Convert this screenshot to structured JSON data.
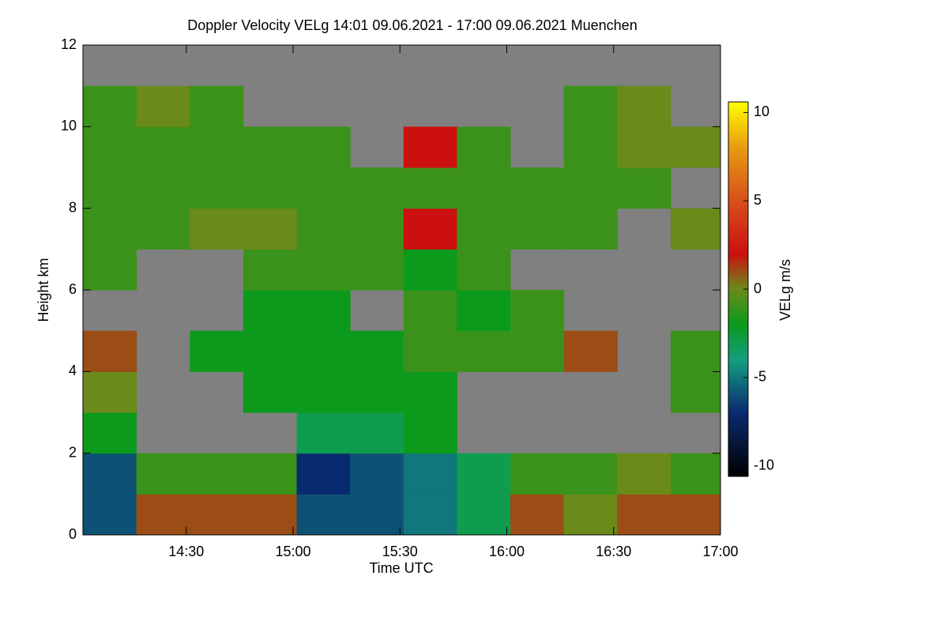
{
  "chart_data": {
    "type": "heatmap",
    "title": "Doppler Velocity VELg   14:01 09.06.2021 - 17:00 09.06.2021 Muenchen",
    "x_label": "Time UTC",
    "y_label": "Height km",
    "colorbar_label": "VELg m/s",
    "xlim": [
      841,
      1020
    ],
    "xticks": [
      {
        "value": 870,
        "label": "14:30"
      },
      {
        "value": 900,
        "label": "15:00"
      },
      {
        "value": 930,
        "label": "15:30"
      },
      {
        "value": 960,
        "label": "16:00"
      },
      {
        "value": 990,
        "label": "16:30"
      },
      {
        "value": 1020,
        "label": "17:00"
      }
    ],
    "ylim": [
      0,
      12
    ],
    "yticks": [
      0,
      2,
      4,
      6,
      8,
      10,
      12
    ],
    "x_edges": [
      841,
      856,
      871,
      886,
      901,
      916,
      931,
      946,
      961,
      976,
      991,
      1006,
      1020
    ],
    "y_edges": [
      0,
      1,
      2,
      3,
      4,
      5,
      6,
      7,
      8,
      9,
      10,
      11,
      12
    ],
    "z": [
      [
        -6,
        1,
        1,
        1,
        -6,
        -6,
        -5,
        -3,
        1,
        0,
        1,
        1
      ],
      [
        -6,
        -1,
        -1,
        -1,
        -7,
        -6,
        -5,
        -3,
        -1,
        -1,
        0,
        -1
      ],
      [
        -2,
        null,
        null,
        null,
        -3,
        -3,
        -2,
        null,
        null,
        null,
        null,
        null
      ],
      [
        0,
        null,
        null,
        -2,
        -2,
        -2,
        -2,
        null,
        null,
        null,
        null,
        -1
      ],
      [
        1,
        null,
        -2,
        -2,
        -2,
        -2,
        -1,
        -1,
        -1,
        1,
        null,
        -1
      ],
      [
        null,
        null,
        null,
        -2,
        -2,
        null,
        -1,
        -2,
        -1,
        null,
        null,
        null
      ],
      [
        -1,
        null,
        null,
        -1,
        -1,
        -1,
        -2,
        -1,
        null,
        null,
        null,
        null
      ],
      [
        -1,
        -1,
        0,
        0,
        -1,
        -1,
        2,
        -1,
        -1,
        -1,
        null,
        0
      ],
      [
        -1,
        -1,
        -1,
        -1,
        -1,
        -1,
        -1,
        -1,
        -1,
        -1,
        -1,
        null
      ],
      [
        -1,
        -1,
        -1,
        -1,
        -1,
        null,
        2,
        -1,
        null,
        -1,
        0,
        0
      ],
      [
        -1,
        0,
        -1,
        null,
        null,
        null,
        null,
        null,
        null,
        -1,
        0,
        null
      ],
      [
        null,
        null,
        null,
        null,
        null,
        null,
        null,
        null,
        null,
        null,
        null,
        null
      ]
    ],
    "missing_color": "#808080",
    "clim": [
      -10.6,
      10.6
    ],
    "cticks": [
      -10,
      -5,
      0,
      5,
      10
    ],
    "colorscale": [
      [
        -10.6,
        "#000000"
      ],
      [
        -7,
        "#0a2a70"
      ],
      [
        -4,
        "#139e80"
      ],
      [
        -2,
        "#0c9a1c"
      ],
      [
        0,
        "#6a8a1a"
      ],
      [
        2,
        "#cc1010"
      ],
      [
        5,
        "#d8501a"
      ],
      [
        8,
        "#e89a10"
      ],
      [
        10.6,
        "#ffff00"
      ]
    ]
  }
}
